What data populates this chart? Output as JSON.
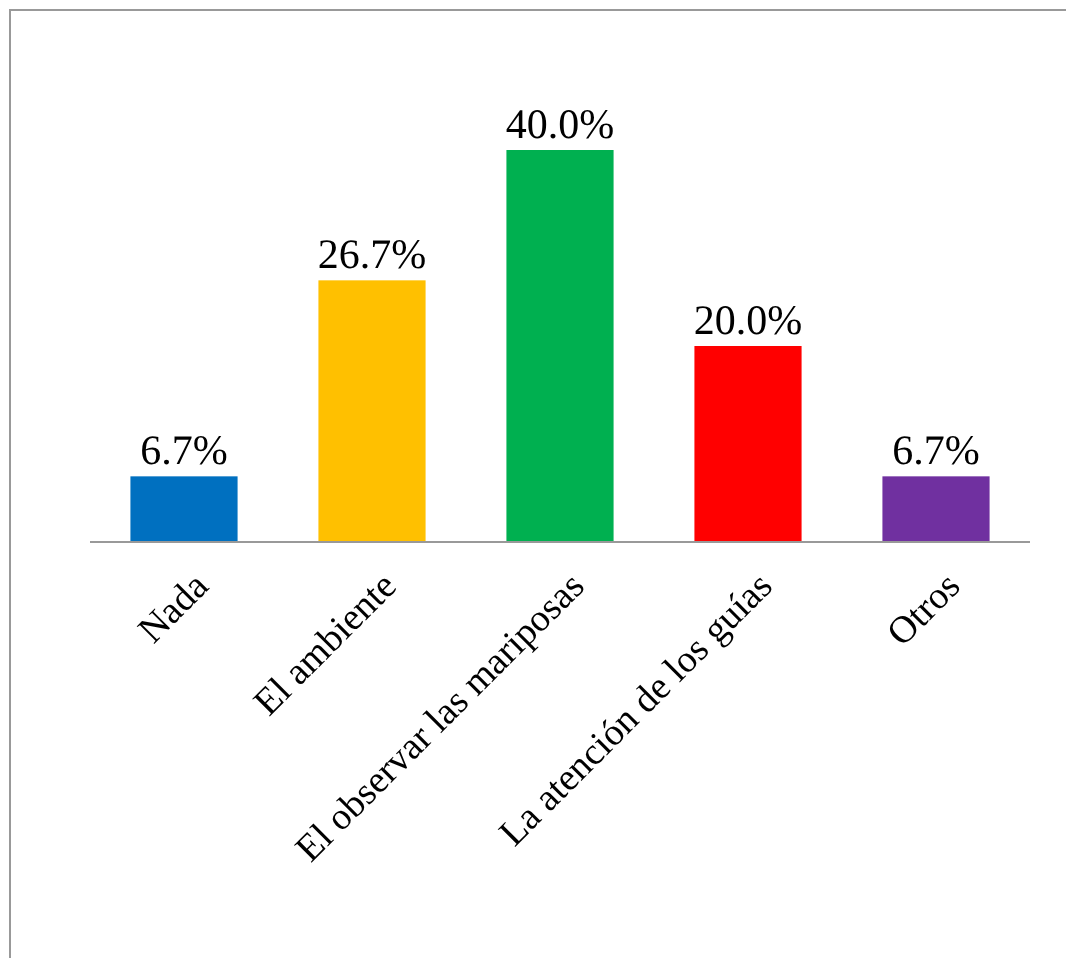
{
  "chart_data": {
    "type": "bar",
    "categories": [
      "Nada",
      "El ambiente",
      "El observar las mariposas",
      "La atención de los guías",
      "Otros"
    ],
    "values": [
      6.7,
      26.7,
      40.0,
      20.0,
      6.7
    ],
    "colors": [
      "#0070c0",
      "#ffc000",
      "#00b050",
      "#ff0000",
      "#7030a0"
    ],
    "value_labels": [
      "6.7%",
      "26.7%",
      "40.0%",
      "20.0%",
      "6.7%"
    ]
  }
}
